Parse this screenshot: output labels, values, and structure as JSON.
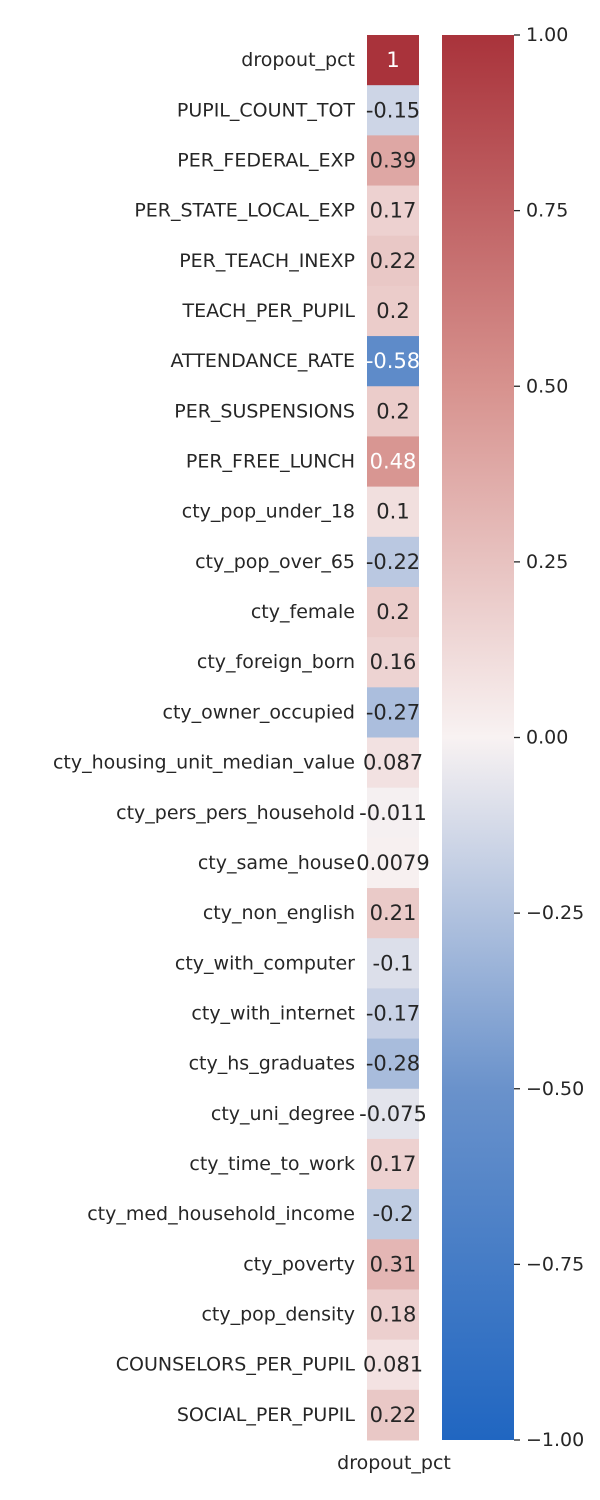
{
  "chart_data": {
    "type": "heatmap",
    "title": "",
    "xlabel": "",
    "ylabel": "",
    "columns": [
      "dropout_pct"
    ],
    "rows": [
      "dropout_pct",
      "PUPIL_COUNT_TOT",
      "PER_FEDERAL_EXP",
      "PER_STATE_LOCAL_EXP",
      "PER_TEACH_INEXP",
      "TEACH_PER_PUPIL",
      "ATTENDANCE_RATE",
      "PER_SUSPENSIONS",
      "PER_FREE_LUNCH",
      "cty_pop_under_18",
      "cty_pop_over_65",
      "cty_female",
      "cty_foreign_born",
      "cty_owner_occupied",
      "cty_housing_unit_median_value",
      "cty_pers_pers_household",
      "cty_same_house",
      "cty_non_english",
      "cty_with_computer",
      "cty_with_internet",
      "cty_hs_graduates",
      "cty_uni_degree",
      "cty_time_to_work",
      "cty_med_household_income",
      "cty_poverty",
      "cty_pop_density",
      "COUNSELORS_PER_PUPIL",
      "SOCIAL_PER_PUPIL"
    ],
    "values": [
      1,
      -0.15,
      0.39,
      0.17,
      0.22,
      0.2,
      -0.58,
      0.2,
      0.48,
      0.1,
      -0.22,
      0.2,
      0.16,
      -0.27,
      0.087,
      -0.011,
      0.0079,
      0.21,
      -0.1,
      -0.17,
      -0.28,
      -0.075,
      0.17,
      -0.2,
      0.31,
      0.18,
      0.081,
      0.22
    ],
    "annotations": [
      "1",
      "-0.15",
      "0.39",
      "0.17",
      "0.22",
      "0.2",
      "-0.58",
      "0.2",
      "0.48",
      "0.1",
      "-0.22",
      "0.2",
      "0.16",
      "-0.27",
      "0.087",
      "-0.011",
      "0.0079",
      "0.21",
      "-0.1",
      "-0.17",
      "-0.28",
      "-0.075",
      "0.17",
      "-0.2",
      "0.31",
      "0.18",
      "0.081",
      "0.22"
    ],
    "colorbar": {
      "range": [
        -1,
        1
      ],
      "ticks": [
        1,
        0.75,
        0.5,
        0.25,
        0,
        -0.25,
        -0.5,
        -0.75,
        -1
      ],
      "tick_labels": [
        "1.00",
        "0.75",
        "0.50",
        "0.25",
        "0.00",
        "−0.25",
        "−0.50",
        "−0.75",
        "−1.00"
      ],
      "colors": {
        "low": "#2066c1",
        "mid": "#f8f2f2",
        "high": "#a9333b"
      }
    },
    "grid": false,
    "legend": "colorbar-right"
  }
}
